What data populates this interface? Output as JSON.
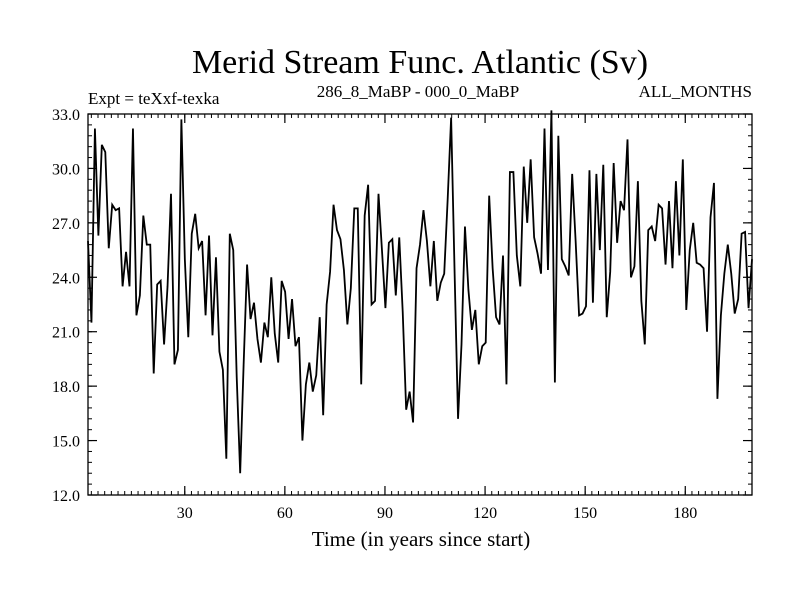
{
  "chart_data": {
    "type": "line",
    "title": "Merid Stream Func. Atlantic (Sv)",
    "subtitle_left": "Expt = teXxf-texka",
    "subtitle_center": "286_8_MaBP - 000_0_MaBP",
    "subtitle_right": "ALL_MONTHS",
    "xlabel": "Time (in years since start)",
    "ylabel": "",
    "xlim": [
      1,
      200
    ],
    "ylim": [
      12.0,
      33.0
    ],
    "xticks": [
      30,
      60,
      90,
      120,
      150,
      180
    ],
    "xtick_labels": [
      "30",
      "60",
      "90",
      "120",
      "150",
      "180"
    ],
    "yticks": [
      12,
      15,
      18,
      21,
      24,
      27,
      30,
      33
    ],
    "ytick_labels": [
      "12.0",
      "15.0",
      "18.0",
      "21.0",
      "24.0",
      "27.0",
      "30.0",
      "33.0"
    ],
    "series": [
      {
        "name": "Merid Stream Func. Atlantic",
        "values": [
          26.0,
          21.5,
          32.2,
          26.3,
          31.3,
          30.9,
          25.6,
          28.0,
          27.7,
          27.8,
          23.5,
          25.4,
          23.5,
          32.2,
          21.9,
          23.0,
          27.4,
          25.8,
          25.8,
          18.7,
          23.6,
          23.8,
          20.3,
          23.5,
          28.6,
          19.2,
          20.0,
          32.7,
          25.0,
          20.7,
          26.4,
          27.5,
          25.6,
          26.0,
          21.9,
          26.3,
          20.8,
          25.1,
          19.9,
          18.9,
          14.0,
          26.4,
          25.5,
          18.5,
          13.2,
          19.2,
          24.7,
          21.7,
          22.6,
          20.6,
          19.3,
          21.5,
          20.7,
          24.0,
          20.9,
          19.3,
          23.8,
          23.2,
          20.6,
          22.8,
          20.2,
          20.7,
          15.0,
          18.1,
          19.3,
          17.7,
          18.6,
          21.8,
          16.4,
          22.5,
          24.3,
          28.0,
          26.6,
          26.1,
          24.4,
          21.4,
          23.4,
          27.8,
          27.8,
          18.1,
          27.4,
          29.1,
          22.5,
          22.7,
          28.6,
          25.5,
          22.3,
          25.9,
          26.1,
          23.0,
          26.2,
          22.1,
          16.7,
          17.7,
          16.0,
          24.5,
          25.8,
          27.7,
          26.0,
          23.5,
          26.0,
          22.7,
          23.7,
          24.2,
          28.3,
          32.8,
          24.3,
          16.2,
          20.3,
          26.8,
          23.3,
          21.1,
          22.2,
          19.2,
          20.2,
          20.4,
          28.5,
          24.5,
          21.8,
          21.4,
          25.2,
          18.1,
          29.8,
          29.8,
          25.2,
          23.5,
          30.1,
          27.0,
          30.5,
          26.2,
          25.3,
          24.2,
          32.2,
          24.4,
          33.2,
          18.2,
          31.8,
          25.0,
          24.6,
          24.1,
          29.7,
          26.0,
          21.9,
          22.0,
          22.4,
          29.9,
          22.6,
          29.7,
          25.5,
          30.2,
          21.8,
          24.3,
          30.3,
          25.9,
          28.2,
          27.7,
          31.6,
          24.0,
          24.6,
          29.3,
          22.7,
          20.3,
          26.6,
          26.8,
          26.0,
          28.0,
          27.8,
          24.7,
          28.2,
          24.5,
          29.3,
          25.2,
          30.5,
          22.2,
          25.5,
          27.0,
          24.8,
          24.7,
          24.5,
          21.0,
          27.3,
          29.2,
          17.3,
          21.9,
          24.2,
          25.8,
          24.2,
          22.0,
          22.8,
          26.4,
          26.5,
          22.3,
          25.0
        ]
      }
    ]
  }
}
